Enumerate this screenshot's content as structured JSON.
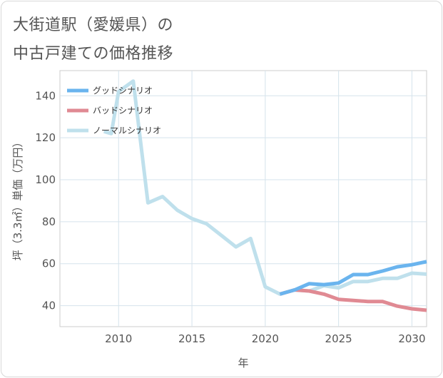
{
  "title_line1": "大街道駅（愛媛県）の",
  "title_line2": "中古戸建ての価格推移",
  "chart_data": {
    "type": "line",
    "xlabel": "年",
    "ylabel": "坪（3.3㎡）単価（万円）",
    "xlim": [
      2006,
      2031
    ],
    "ylim": [
      30,
      152
    ],
    "xticks": [
      2010,
      2015,
      2020,
      2025,
      2030
    ],
    "yticks": [
      40,
      60,
      80,
      100,
      120,
      140
    ],
    "grid": true,
    "legend_position": "top-left",
    "series": [
      {
        "name": "グッドシナリオ",
        "color": "#6ab4ee",
        "x": [
          2021,
          2022,
          2023,
          2024,
          2025,
          2026,
          2027,
          2028,
          2029,
          2030,
          2031
        ],
        "y": [
          45.5,
          47.5,
          50.5,
          50,
          50.8,
          54.8,
          54.8,
          56.5,
          58.5,
          59.5,
          61
        ]
      },
      {
        "name": "バッドシナリオ",
        "color": "#e08a93",
        "x": [
          2021,
          2022,
          2023,
          2024,
          2025,
          2026,
          2027,
          2028,
          2029,
          2030,
          2031
        ],
        "y": [
          45.5,
          47.5,
          47,
          45.5,
          43,
          42.5,
          42,
          42,
          39.8,
          38.5,
          37.8
        ]
      },
      {
        "name": "ノーマルシナリオ",
        "color": "#bfe0ec",
        "x": [
          2009,
          2009.5,
          2010,
          2011,
          2012,
          2013,
          2014,
          2015,
          2016,
          2017,
          2018,
          2019,
          2020,
          2021,
          2022,
          2023,
          2024,
          2025,
          2026,
          2027,
          2028,
          2029,
          2030,
          2031
        ],
        "y": [
          123,
          122,
          142,
          147,
          89,
          92,
          85.5,
          81.5,
          79,
          73.5,
          68,
          72,
          49,
          45.5,
          47.5,
          47,
          49.5,
          48.5,
          51.5,
          51.5,
          53,
          53,
          55.5,
          55
        ]
      }
    ]
  }
}
